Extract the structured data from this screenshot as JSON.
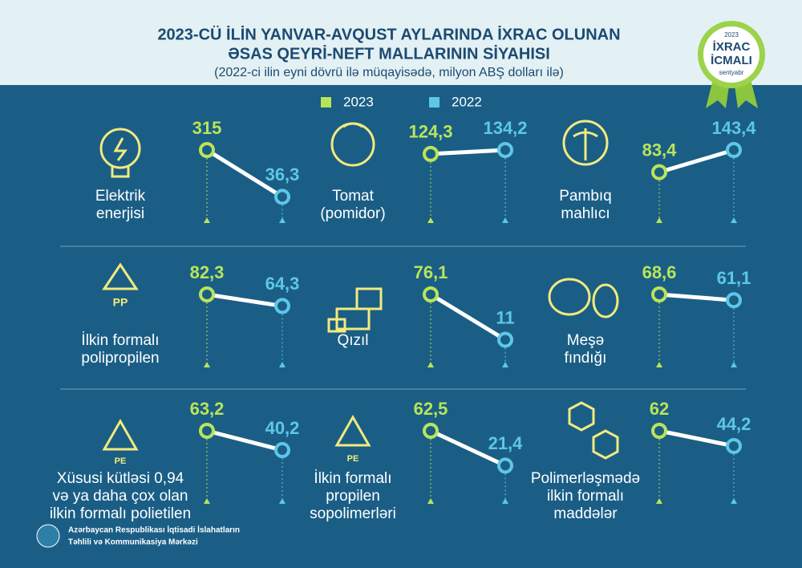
{
  "header": {
    "title_line1": "2023-CÜ İLİN YANVAR-AVQUST AYLARINDA İXRAC OLUNAN",
    "title_line2": "ƏSAS QEYRİ-NEFT MALLARININ SİYAHISI",
    "subtitle": "(2022-ci ilin eyni dövrü ilə müqayisədə, milyon ABŞ dolları ilə)"
  },
  "badge": {
    "year": "2023",
    "line1": "İXRAC",
    "line2": "İCMALI",
    "month": "sentyabr"
  },
  "legend": [
    {
      "name": "2023",
      "color": "#b9e45a"
    },
    {
      "name": "2022",
      "color": "#5ec7e6"
    }
  ],
  "items": [
    {
      "label": [
        "Elektrik",
        "enerjisi"
      ],
      "values": [
        315,
        36.3
      ],
      "value_labels": [
        "315",
        "36,3"
      ]
    },
    {
      "label": [
        "Tomat",
        "(pomidor)"
      ],
      "values": [
        124.3,
        134.2
      ],
      "value_labels": [
        "124,3",
        "134,2"
      ]
    },
    {
      "label": [
        "Pambıq",
        "mahlıcı"
      ],
      "values": [
        83.4,
        143.4
      ],
      "value_labels": [
        "83,4",
        "143,4"
      ]
    },
    {
      "label": [
        "İlkin formalı",
        "polipropilen"
      ],
      "values": [
        82.3,
        64.3
      ],
      "value_labels": [
        "82,3",
        "64,3"
      ]
    },
    {
      "label": [
        "Qızıl"
      ],
      "values": [
        76.1,
        11
      ],
      "value_labels": [
        "76,1",
        "11"
      ]
    },
    {
      "label": [
        "Meşə",
        "fındığı"
      ],
      "values": [
        68.6,
        61.1
      ],
      "value_labels": [
        "68,6",
        "61,1"
      ]
    },
    {
      "label": [
        "Xüsusi kütləsi 0,94",
        "və ya daha çox olan",
        "ilkin formalı polietilen"
      ],
      "values": [
        63.2,
        40.2
      ],
      "value_labels": [
        "63,2",
        "40,2"
      ]
    },
    {
      "label": [
        "İlkin formalı",
        "propilen",
        "sopolimerləri"
      ],
      "values": [
        62.5,
        21.4
      ],
      "value_labels": [
        "62,5",
        "21,4"
      ]
    },
    {
      "label": [
        "Polimerləşmədə",
        "ilkin formalı",
        "maddələr"
      ],
      "values": [
        62,
        44.2
      ],
      "value_labels": [
        "62",
        "44,2"
      ]
    }
  ],
  "footer": {
    "line1": "Azərbaycan Respublikası İqtisadi İslahatların",
    "line2": "Təhlili və Kommunikasiya Mərkəzi"
  }
}
